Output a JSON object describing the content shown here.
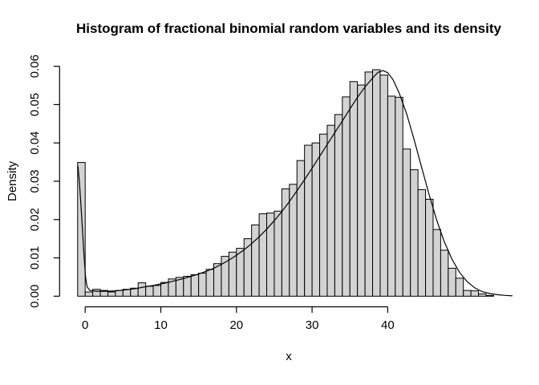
{
  "window": {
    "background": "#ffffff",
    "foreground": "#000000"
  },
  "chart_data": {
    "type": "histogram",
    "title": "Histogram of fractional binomial random variables and its density",
    "xlabel": "x",
    "ylabel": "Density",
    "x_ticks": [
      0,
      10,
      20,
      30,
      40
    ],
    "y_ticks": [
      "0.00",
      "0.01",
      "0.02",
      "0.03",
      "0.04",
      "0.05",
      "0.06"
    ],
    "xlim": [
      -1,
      54
    ],
    "ylim": [
      0,
      0.06
    ],
    "grid": false,
    "legend": "none",
    "bin_width": 1,
    "first_bin_start": -1,
    "bar_fill": "#d3d3d3",
    "bar_stroke": "#000000",
    "curve_color": "#000000",
    "densities": [
      0.0349,
      0.0011,
      0.0018,
      0.0015,
      0.0011,
      0.0015,
      0.0018,
      0.0021,
      0.0035,
      0.0026,
      0.0028,
      0.0036,
      0.0045,
      0.0049,
      0.0052,
      0.0056,
      0.006,
      0.007,
      0.0085,
      0.0104,
      0.0115,
      0.0125,
      0.015,
      0.0186,
      0.0215,
      0.0217,
      0.0222,
      0.028,
      0.0292,
      0.0354,
      0.0394,
      0.04,
      0.0423,
      0.0446,
      0.0474,
      0.052,
      0.056,
      0.0551,
      0.0585,
      0.0591,
      0.0577,
      0.0522,
      0.0519,
      0.0384,
      0.033,
      0.0278,
      0.0253,
      0.0174,
      0.012,
      0.0073,
      0.0047,
      0.0015,
      0.0014,
      0.0006,
      0.0002
    ],
    "density_curve": [
      [
        -0.95,
        0.034
      ],
      [
        -0.75,
        0.0295
      ],
      [
        -0.55,
        0.0235
      ],
      [
        -0.35,
        0.017
      ],
      [
        -0.15,
        0.0105
      ],
      [
        0.05,
        0.005
      ],
      [
        0.25,
        0.0024
      ],
      [
        0.6,
        0.0015
      ],
      [
        1.5,
        0.0013
      ],
      [
        3,
        0.0013
      ],
      [
        4,
        0.0014
      ],
      [
        5,
        0.0016
      ],
      [
        6,
        0.0018
      ],
      [
        7,
        0.0021
      ],
      [
        8,
        0.0025
      ],
      [
        9,
        0.0028
      ],
      [
        10,
        0.0032
      ],
      [
        11,
        0.0036
      ],
      [
        12,
        0.0041
      ],
      [
        13,
        0.0046
      ],
      [
        14,
        0.0052
      ],
      [
        15,
        0.0058
      ],
      [
        16,
        0.0065
      ],
      [
        17,
        0.0073
      ],
      [
        18,
        0.0083
      ],
      [
        19,
        0.0094
      ],
      [
        20,
        0.0107
      ],
      [
        21,
        0.0121
      ],
      [
        22,
        0.0137
      ],
      [
        23,
        0.0155
      ],
      [
        24,
        0.0175
      ],
      [
        25,
        0.0197
      ],
      [
        26,
        0.0221
      ],
      [
        27,
        0.0247
      ],
      [
        28,
        0.0275
      ],
      [
        29,
        0.0304
      ],
      [
        30,
        0.0334
      ],
      [
        31,
        0.0365
      ],
      [
        32,
        0.0396
      ],
      [
        33,
        0.0427
      ],
      [
        34,
        0.0457
      ],
      [
        35,
        0.0489
      ],
      [
        36,
        0.0519
      ],
      [
        37,
        0.0546
      ],
      [
        38,
        0.0569
      ],
      [
        38.7,
        0.0584
      ],
      [
        39.4,
        0.0589
      ],
      [
        40,
        0.0583
      ],
      [
        40.7,
        0.0565
      ],
      [
        41.5,
        0.0531
      ],
      [
        42.5,
        0.0476
      ],
      [
        43.5,
        0.0408
      ],
      [
        44.5,
        0.0335
      ],
      [
        45.5,
        0.0263
      ],
      [
        46.5,
        0.0197
      ],
      [
        47.5,
        0.0141
      ],
      [
        48.5,
        0.0096
      ],
      [
        49.5,
        0.0062
      ],
      [
        50.5,
        0.0038
      ],
      [
        51.5,
        0.0022
      ],
      [
        52.5,
        0.0012
      ],
      [
        53.5,
        0.0007
      ],
      [
        54.5,
        0.0004
      ],
      [
        55.5,
        0.0002
      ],
      [
        56.5,
        0.0001
      ]
    ]
  }
}
